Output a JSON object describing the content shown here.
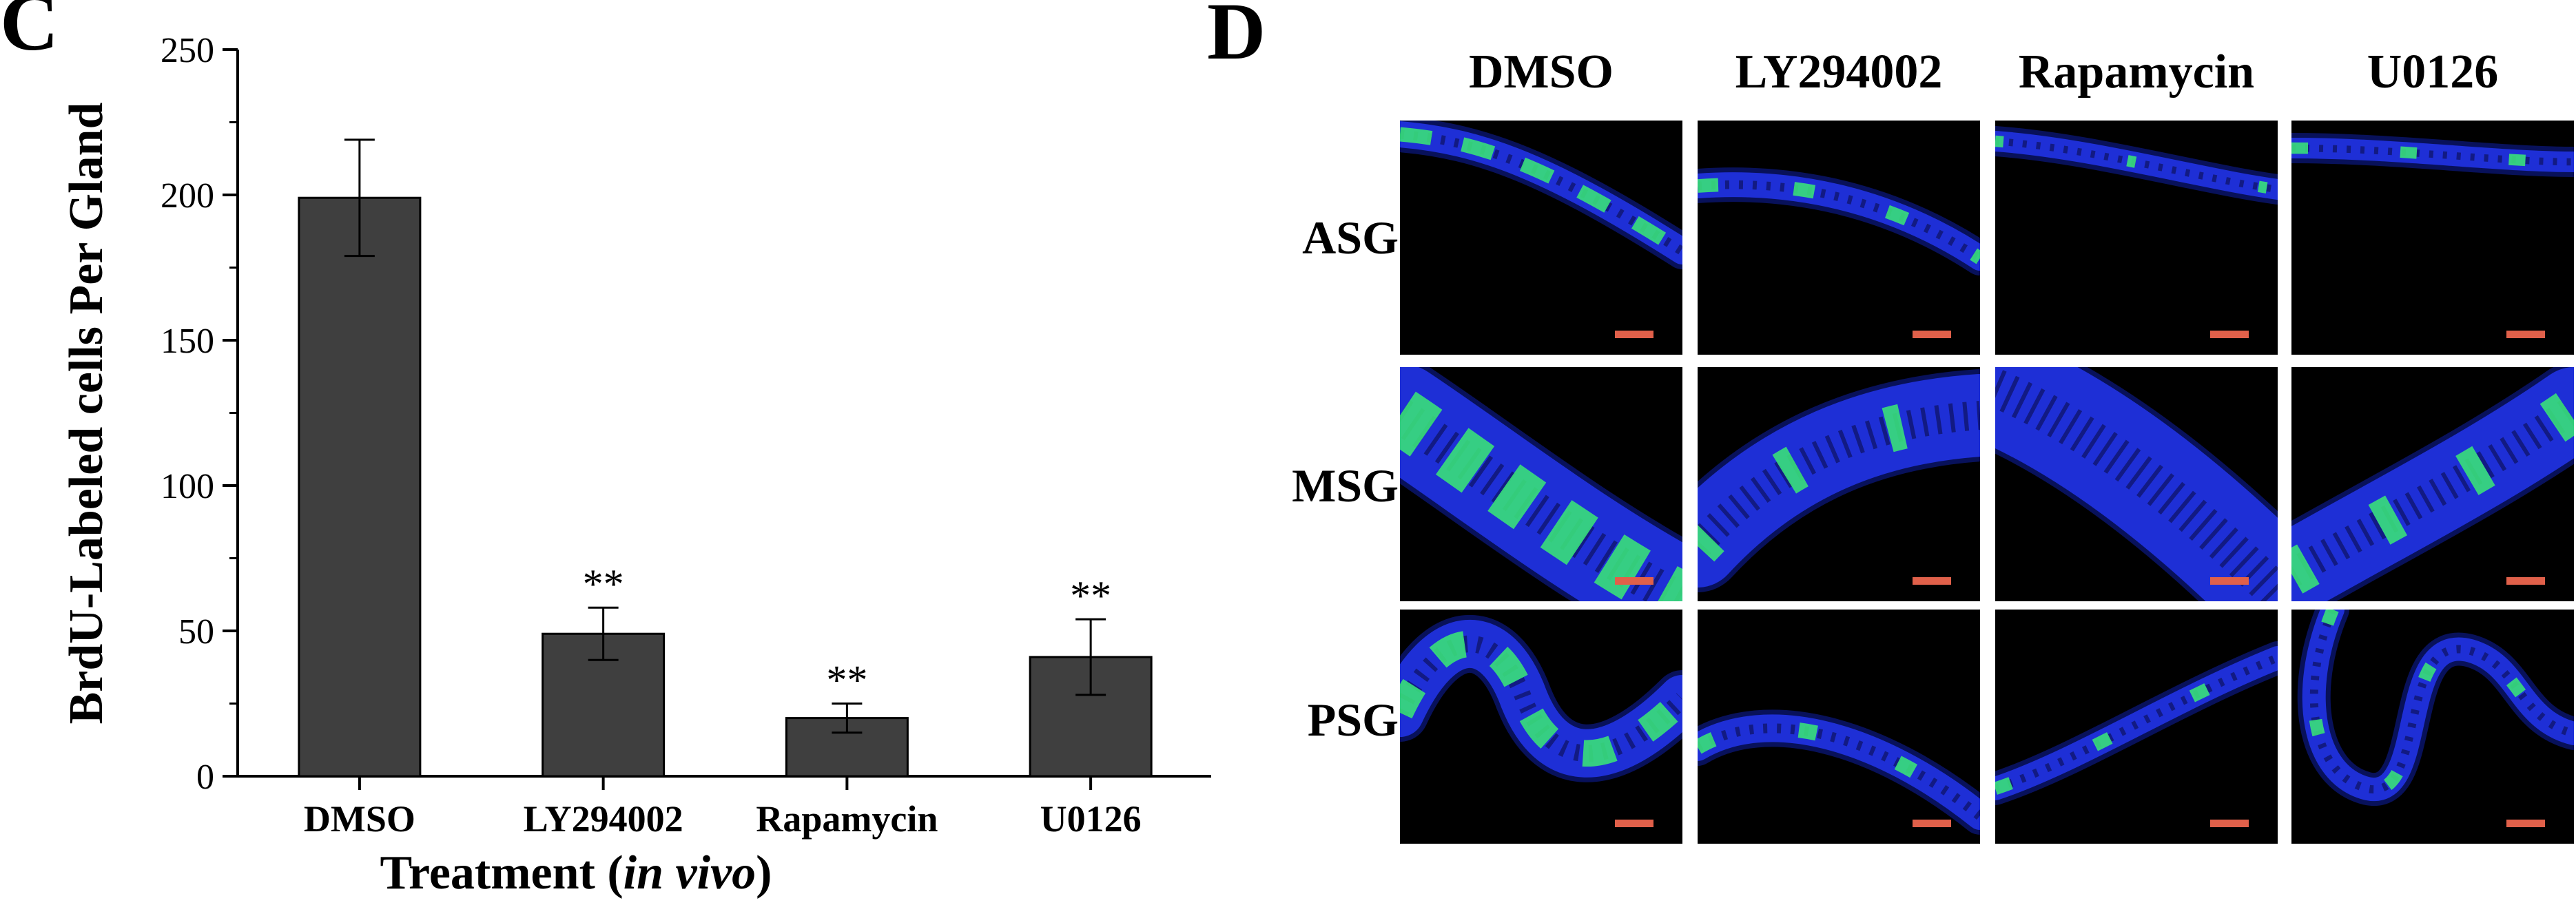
{
  "panel_c_label": "C",
  "panel_d_label": "D",
  "chart_data": {
    "type": "bar",
    "title": "",
    "categories": [
      "DMSO",
      "LY294002",
      "Rapamycin",
      "U0126"
    ],
    "values": [
      199,
      49,
      20,
      41
    ],
    "errors": [
      20,
      9,
      5,
      13
    ],
    "significance": [
      "",
      "**",
      "**",
      "**"
    ],
    "ylim": [
      0,
      250
    ],
    "yticks": [
      0,
      50,
      100,
      150,
      200,
      250
    ],
    "ylabel": "BrdU-Labeled cells Per Gland",
    "xlabel_main": "Treatment (",
    "xlabel_italic": "in vivo",
    "xlabel_end": ")",
    "bar_color": "#3f3f3f",
    "grid": false
  },
  "micrograph_grid": {
    "columns": [
      "DMSO",
      "LY294002",
      "Rapamycin",
      "U0126"
    ],
    "rows": [
      "ASG",
      "MSG",
      "PSG"
    ],
    "tissue_color": "#1e2fd6",
    "label_color": "#39e07a",
    "scale_bar_color": "#e0604a",
    "labeling_density": [
      [
        0.9,
        0.5,
        0.05,
        0.35
      ],
      [
        0.9,
        0.3,
        0.0,
        0.45
      ],
      [
        0.85,
        0.4,
        0.35,
        0.3
      ]
    ]
  }
}
